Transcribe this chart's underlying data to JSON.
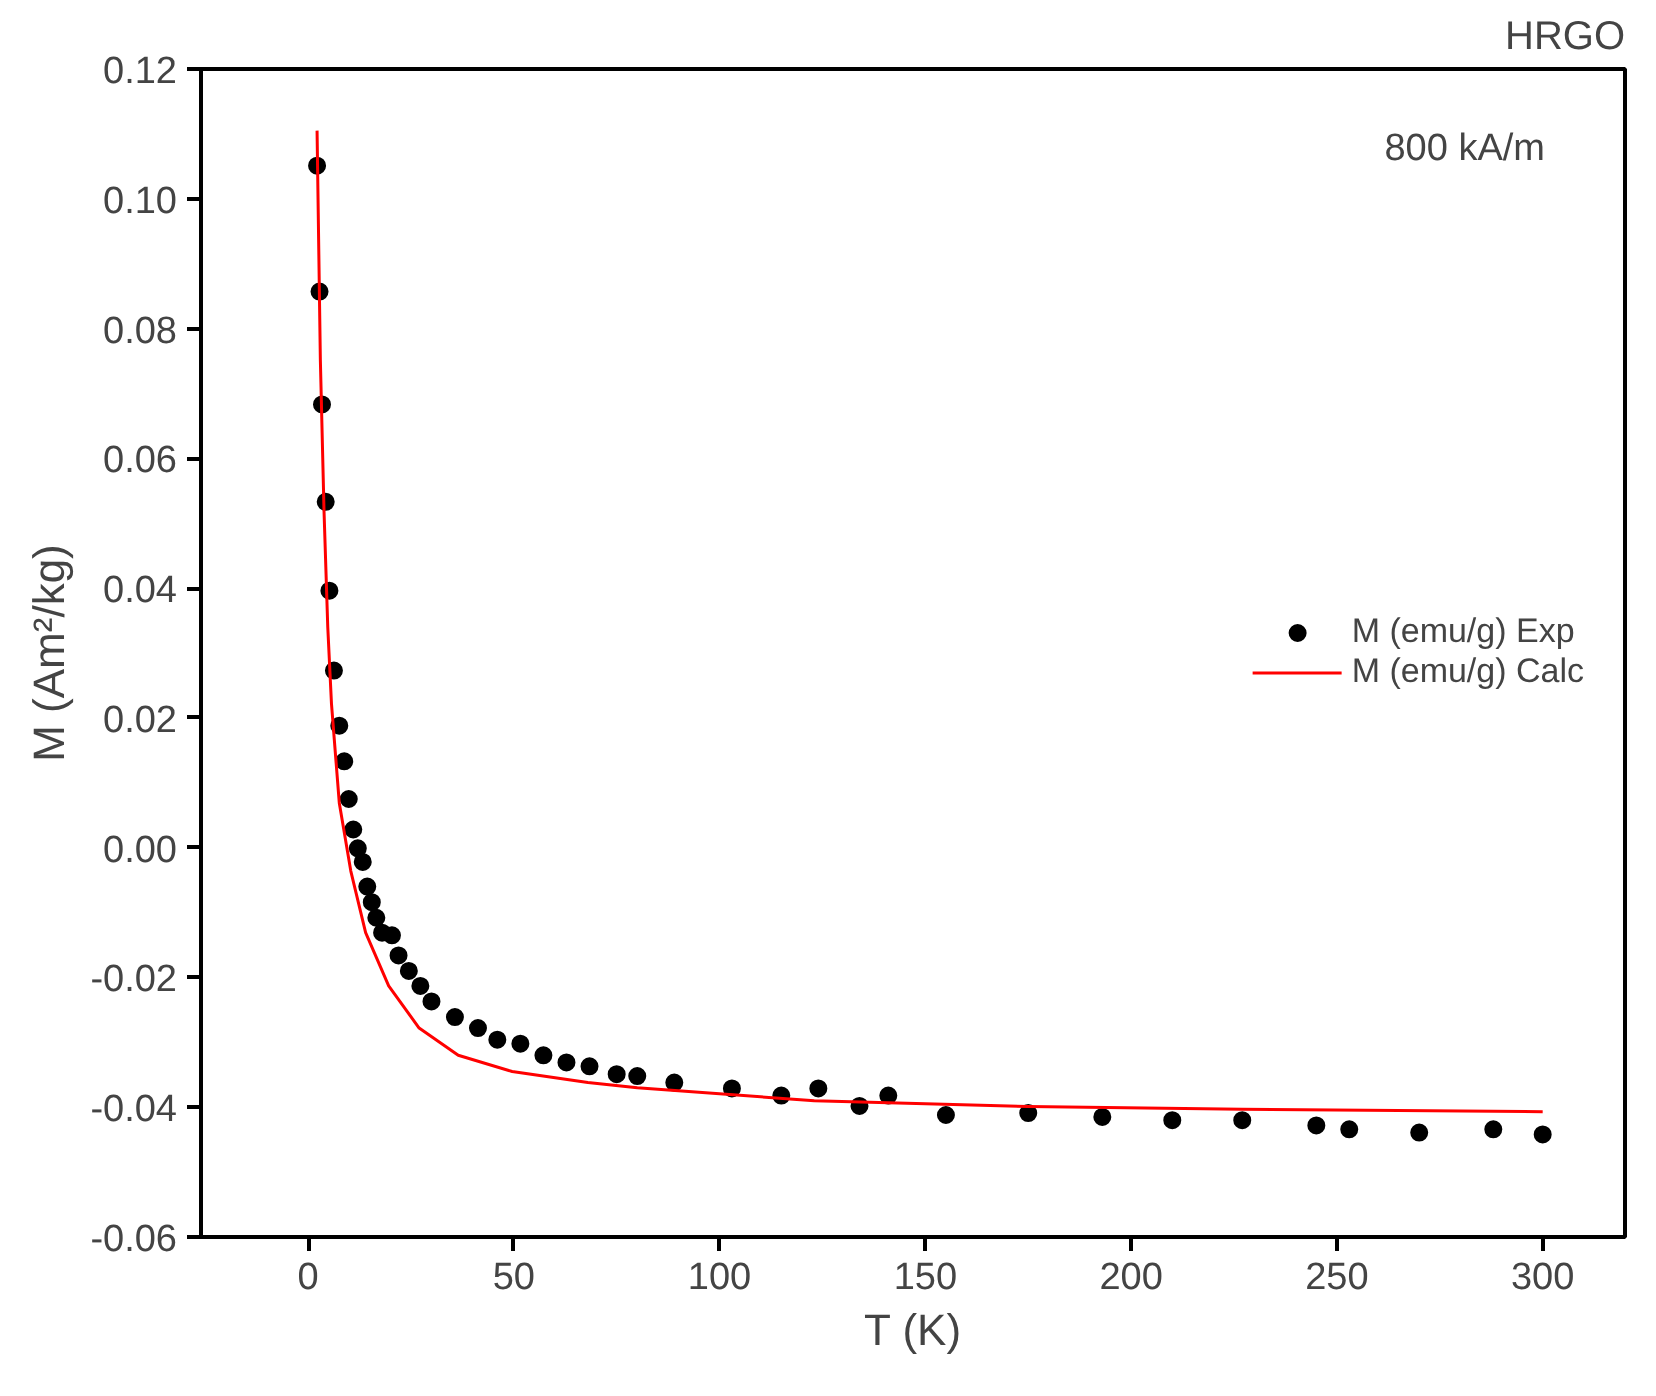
{
  "chart_data": {
    "type": "scatter",
    "title": "HRGO",
    "xlabel": "T (K)",
    "ylabel": "M (Am²/kg)",
    "annotations": [
      "800 kA/m"
    ],
    "xlim": [
      -26,
      320
    ],
    "ylim": [
      -0.06,
      0.12
    ],
    "xticks": [
      0,
      50,
      100,
      150,
      200,
      250,
      300
    ],
    "yticks": [
      {
        "value": -0.06,
        "label": "-0.06"
      },
      {
        "value": -0.04,
        "label": "-0.04"
      },
      {
        "value": -0.02,
        "label": "-0.02"
      },
      {
        "value": 0,
        "label": "0.00"
      },
      {
        "value": 0.02,
        "label": "0.02"
      },
      {
        "value": 0.04,
        "label": "0.04"
      },
      {
        "value": 0.06,
        "label": "0.06"
      },
      {
        "value": 0.08,
        "label": "0.08"
      },
      {
        "value": 0.1,
        "label": "0.10"
      },
      {
        "value": 0.12,
        "label": "0.12"
      }
    ],
    "grid": false,
    "legend": "right",
    "series": [
      {
        "name": "M (emu/g) Exp",
        "marker": "circle",
        "color": "#000000",
        "x": [
          2.2,
          2.8,
          3.4,
          4.3,
          5.2,
          6.3,
          7.6,
          8.8,
          9.9,
          11,
          12.1,
          13.3,
          14.4,
          15.5,
          16.6,
          18,
          20.4,
          22,
          24.5,
          27.3,
          30,
          35.7,
          41.3,
          46,
          51.6,
          57.2,
          62.8,
          68.4,
          75,
          80,
          89,
          103,
          115,
          124,
          134,
          141,
          155,
          175,
          193,
          210,
          227,
          245,
          253,
          270,
          288,
          300
        ],
        "values": [
          0.1051,
          0.0857,
          0.0683,
          0.0533,
          0.0396,
          0.0273,
          0.0188,
          0.0133,
          0.0075,
          0.0028,
          -0.0001,
          -0.0022,
          -0.006,
          -0.0084,
          -0.0108,
          -0.0131,
          -0.0135,
          -0.0166,
          -0.019,
          -0.0213,
          -0.0237,
          -0.0261,
          -0.0278,
          -0.0296,
          -0.0302,
          -0.032,
          -0.0331,
          -0.0337,
          -0.0349,
          -0.0352,
          -0.0362,
          -0.0371,
          -0.0382,
          -0.0371,
          -0.0398,
          -0.0382,
          -0.0412,
          -0.0409,
          -0.0415,
          -0.042,
          -0.042,
          -0.0428,
          -0.0434,
          -0.0439,
          -0.0434,
          -0.0442
        ]
      },
      {
        "name": "M (emu/g) Calc",
        "type": "line",
        "line_style": "solid",
        "color": "#ff0000",
        "x": [
          2.2,
          3,
          3.9,
          4.8,
          5.7,
          7.6,
          10.4,
          14,
          19.6,
          27,
          36.5,
          49.6,
          68,
          80,
          123,
          175,
          227,
          300
        ],
        "values": [
          0.1105,
          0.0752,
          0.0517,
          0.034,
          0.0222,
          0.0069,
          -0.0036,
          -0.0131,
          -0.0213,
          -0.0278,
          -0.032,
          -0.0345,
          -0.0362,
          -0.037,
          -0.039,
          -0.0399,
          -0.0403,
          -0.0407
        ]
      }
    ]
  }
}
